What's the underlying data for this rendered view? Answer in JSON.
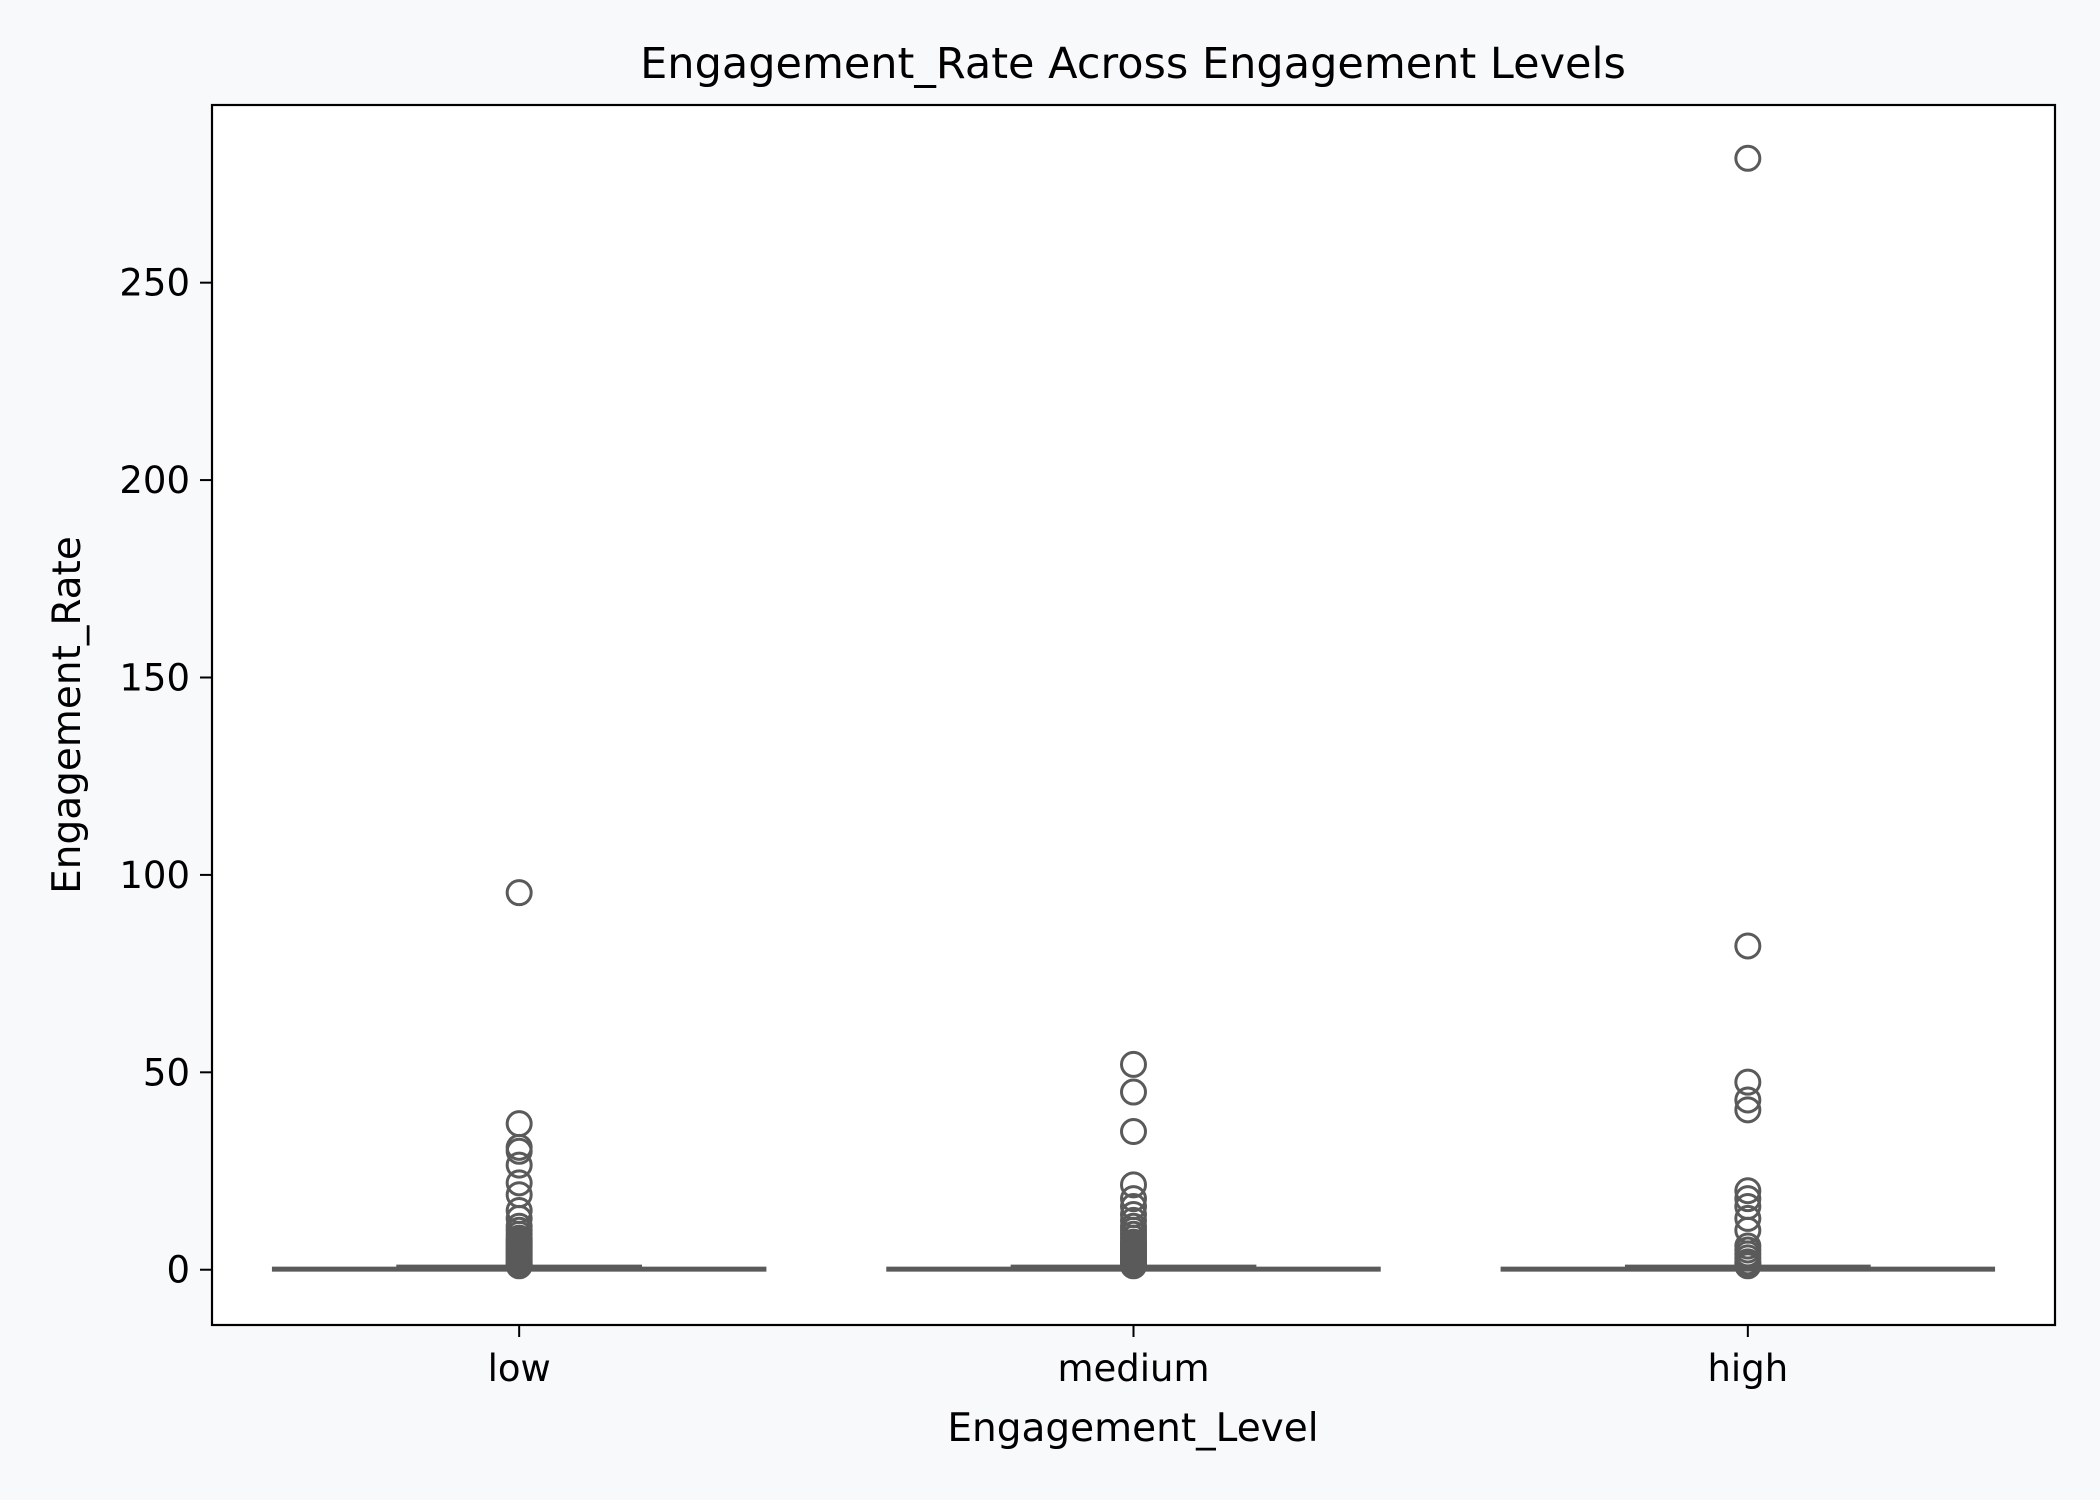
{
  "chart_data": {
    "type": "box",
    "title": "Engagement_Rate Across Engagement Levels",
    "xlabel": "Engagement_Level",
    "ylabel": "Engagement_Rate",
    "categories": [
      "low",
      "medium",
      "high"
    ],
    "ylim": [
      -14,
      295
    ],
    "yticks": [
      0,
      50,
      100,
      150,
      200,
      250
    ],
    "ytick_labels": [
      "0",
      "50",
      "100",
      "150",
      "200",
      "250"
    ],
    "grid": false,
    "legend": "none",
    "box_color": "#5a5a5a",
    "boxes": [
      {
        "category": "low",
        "q1": 0.05,
        "median": 0.15,
        "q3": 0.4,
        "whisker_low": 0,
        "whisker_high": 0.9,
        "outliers": [
          95.5,
          37,
          31,
          30,
          26.5,
          22,
          19,
          15,
          13,
          11,
          10,
          9,
          8,
          7.5,
          7,
          6.5,
          6,
          5.5,
          5,
          4.5,
          4,
          3.5,
          3,
          2.5,
          2,
          1.5,
          1.2,
          1
        ]
      },
      {
        "category": "medium",
        "q1": 0.05,
        "median": 0.15,
        "q3": 0.4,
        "whisker_low": 0,
        "whisker_high": 0.9,
        "outliers": [
          52,
          45,
          35,
          21.5,
          18,
          16,
          14,
          12.5,
          11,
          10,
          9,
          8,
          7,
          6.5,
          6,
          5.5,
          5,
          4.5,
          4,
          3.5,
          3,
          2.5,
          2,
          1.5,
          1.2,
          1
        ]
      },
      {
        "category": "high",
        "q1": 0.05,
        "median": 0.15,
        "q3": 0.4,
        "whisker_low": 0,
        "whisker_high": 0.9,
        "outliers": [
          281.5,
          82,
          47.5,
          43,
          40.5,
          20,
          18,
          16,
          13,
          10,
          6,
          5,
          4,
          3,
          2,
          1.5,
          1
        ]
      }
    ]
  }
}
